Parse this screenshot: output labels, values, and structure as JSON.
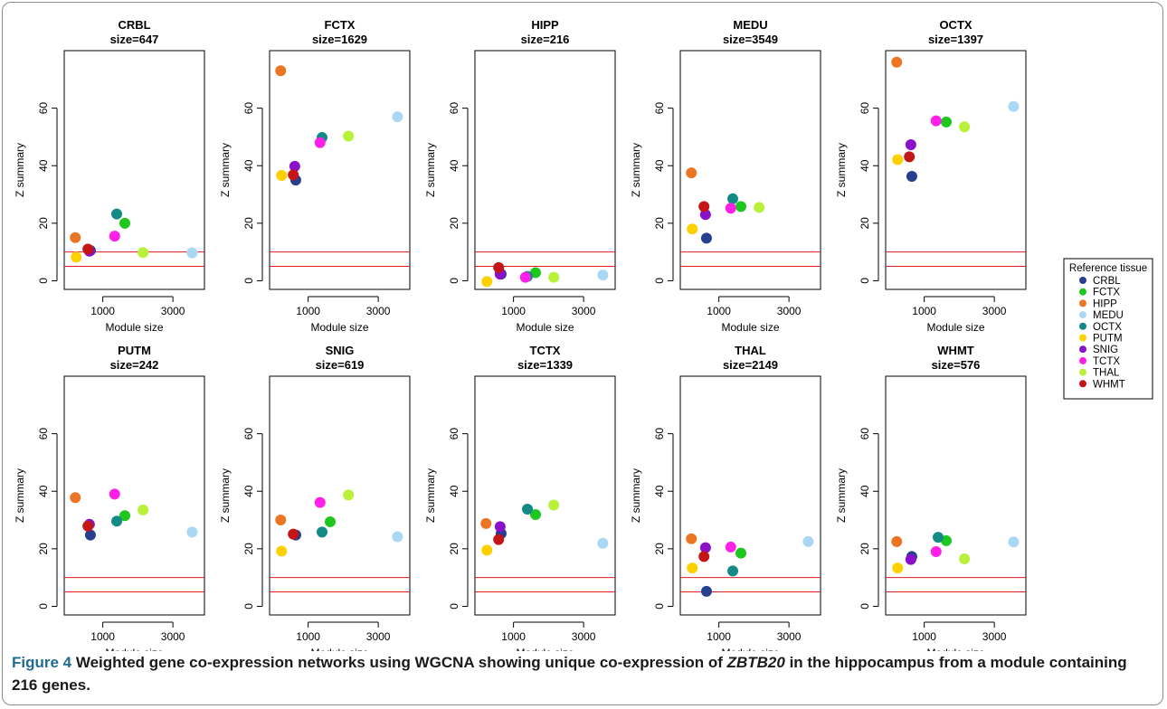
{
  "chart_data": {
    "type": "scatter",
    "layout": "2 rows x 5 columns of small multiples",
    "xlabel": "Module size",
    "ylabel": "Z summary",
    "xticks": [
      1000,
      3000
    ],
    "x_tick_labels": [
      "1000",
      "3000"
    ],
    "xlim": [
      -100,
      3900
    ],
    "yticks": [
      0,
      20,
      40,
      60
    ],
    "y_tick_labels": [
      "0",
      "20",
      "40",
      "60"
    ],
    "ylim": [
      -3,
      80
    ],
    "reference_lines": [
      {
        "y": 5,
        "color": "#e31a1c"
      },
      {
        "y": 10,
        "color": "#e31a1c"
      }
    ],
    "grid": false,
    "legend": {
      "title": "Reference tissue",
      "position": "right",
      "entries": [
        {
          "name": "CRBL",
          "color": "#26408f"
        },
        {
          "name": "FCTX",
          "color": "#1ec71e"
        },
        {
          "name": "HIPP",
          "color": "#ec7524"
        },
        {
          "name": "MEDU",
          "color": "#aad8f4"
        },
        {
          "name": "OCTX",
          "color": "#138a85"
        },
        {
          "name": "PUTM",
          "color": "#ffd000"
        },
        {
          "name": "SNIG",
          "color": "#8a10c9"
        },
        {
          "name": "TCTX",
          "color": "#ff20e8"
        },
        {
          "name": "THAL",
          "color": "#b8f03a"
        },
        {
          "name": "WHMT",
          "color": "#c41616"
        }
      ]
    },
    "panels": [
      {
        "title": "CRBL",
        "subtitle": "size=647",
        "points": [
          {
            "tissue": "CRBL",
            "x": 647,
            "y": 10.5
          },
          {
            "tissue": "FCTX",
            "x": 1629,
            "y": 20
          },
          {
            "tissue": "HIPP",
            "x": 216,
            "y": 15
          },
          {
            "tissue": "MEDU",
            "x": 3549,
            "y": 9.7
          },
          {
            "tissue": "OCTX",
            "x": 1397,
            "y": 23.2
          },
          {
            "tissue": "PUTM",
            "x": 242,
            "y": 8.2
          },
          {
            "tissue": "SNIG",
            "x": 619,
            "y": 10.3
          },
          {
            "tissue": "TCTX",
            "x": 1339,
            "y": 15.5
          },
          {
            "tissue": "THAL",
            "x": 2149,
            "y": 9.8
          },
          {
            "tissue": "WHMT",
            "x": 576,
            "y": 11
          }
        ]
      },
      {
        "title": "FCTX",
        "subtitle": "size=1629",
        "points": [
          {
            "tissue": "CRBL",
            "x": 647,
            "y": 35
          },
          {
            "tissue": "HIPP",
            "x": 216,
            "y": 73
          },
          {
            "tissue": "MEDU",
            "x": 3549,
            "y": 57
          },
          {
            "tissue": "OCTX",
            "x": 1397,
            "y": 49.8
          },
          {
            "tissue": "PUTM",
            "x": 242,
            "y": 36.6
          },
          {
            "tissue": "SNIG",
            "x": 619,
            "y": 39.8
          },
          {
            "tissue": "TCTX",
            "x": 1339,
            "y": 48
          },
          {
            "tissue": "THAL",
            "x": 2149,
            "y": 50.3
          },
          {
            "tissue": "WHMT",
            "x": 576,
            "y": 36.8
          }
        ]
      },
      {
        "title": "HIPP",
        "subtitle": "size=216",
        "points": [
          {
            "tissue": "CRBL",
            "x": 647,
            "y": 2.3
          },
          {
            "tissue": "FCTX",
            "x": 1629,
            "y": 2.8
          },
          {
            "tissue": "MEDU",
            "x": 3549,
            "y": 2
          },
          {
            "tissue": "OCTX",
            "x": 1397,
            "y": 1.5
          },
          {
            "tissue": "PUTM",
            "x": 242,
            "y": -0.3
          },
          {
            "tissue": "SNIG",
            "x": 619,
            "y": 2.3
          },
          {
            "tissue": "TCTX",
            "x": 1339,
            "y": 1.2
          },
          {
            "tissue": "THAL",
            "x": 2149,
            "y": 1.2
          },
          {
            "tissue": "WHMT",
            "x": 576,
            "y": 4.6
          }
        ]
      },
      {
        "title": "MEDU",
        "subtitle": "size=3549",
        "points": [
          {
            "tissue": "CRBL",
            "x": 647,
            "y": 14.8
          },
          {
            "tissue": "FCTX",
            "x": 1629,
            "y": 25.8
          },
          {
            "tissue": "HIPP",
            "x": 216,
            "y": 37.5
          },
          {
            "tissue": "OCTX",
            "x": 1397,
            "y": 28.5
          },
          {
            "tissue": "PUTM",
            "x": 242,
            "y": 18
          },
          {
            "tissue": "SNIG",
            "x": 619,
            "y": 23
          },
          {
            "tissue": "TCTX",
            "x": 1339,
            "y": 25.2
          },
          {
            "tissue": "THAL",
            "x": 2149,
            "y": 25.5
          },
          {
            "tissue": "WHMT",
            "x": 576,
            "y": 25.8
          }
        ]
      },
      {
        "title": "OCTX",
        "subtitle": "size=1397",
        "points": [
          {
            "tissue": "CRBL",
            "x": 647,
            "y": 36.3
          },
          {
            "tissue": "FCTX",
            "x": 1629,
            "y": 55.2
          },
          {
            "tissue": "HIPP",
            "x": 216,
            "y": 76
          },
          {
            "tissue": "MEDU",
            "x": 3549,
            "y": 60.6
          },
          {
            "tissue": "PUTM",
            "x": 242,
            "y": 42.1
          },
          {
            "tissue": "SNIG",
            "x": 619,
            "y": 47.3
          },
          {
            "tissue": "TCTX",
            "x": 1339,
            "y": 55.6
          },
          {
            "tissue": "THAL",
            "x": 2149,
            "y": 53.5
          },
          {
            "tissue": "WHMT",
            "x": 576,
            "y": 43.1
          }
        ]
      },
      {
        "title": "PUTM",
        "subtitle": "size=242",
        "points": [
          {
            "tissue": "CRBL",
            "x": 647,
            "y": 24.8
          },
          {
            "tissue": "FCTX",
            "x": 1629,
            "y": 31.5
          },
          {
            "tissue": "HIPP",
            "x": 216,
            "y": 37.8
          },
          {
            "tissue": "MEDU",
            "x": 3549,
            "y": 25.8
          },
          {
            "tissue": "OCTX",
            "x": 1397,
            "y": 29.6
          },
          {
            "tissue": "SNIG",
            "x": 619,
            "y": 28.5
          },
          {
            "tissue": "TCTX",
            "x": 1339,
            "y": 39
          },
          {
            "tissue": "THAL",
            "x": 2149,
            "y": 33.5
          },
          {
            "tissue": "WHMT",
            "x": 576,
            "y": 27.9
          }
        ]
      },
      {
        "title": "SNIG",
        "subtitle": "size=619",
        "points": [
          {
            "tissue": "CRBL",
            "x": 647,
            "y": 24.8
          },
          {
            "tissue": "FCTX",
            "x": 1629,
            "y": 29.4
          },
          {
            "tissue": "HIPP",
            "x": 216,
            "y": 30
          },
          {
            "tissue": "MEDU",
            "x": 3549,
            "y": 24.2
          },
          {
            "tissue": "OCTX",
            "x": 1397,
            "y": 25.8
          },
          {
            "tissue": "PUTM",
            "x": 242,
            "y": 19.2
          },
          {
            "tissue": "TCTX",
            "x": 1339,
            "y": 36.1
          },
          {
            "tissue": "THAL",
            "x": 2149,
            "y": 38.7
          },
          {
            "tissue": "WHMT",
            "x": 576,
            "y": 25.1
          }
        ]
      },
      {
        "title": "TCTX",
        "subtitle": "size=1339",
        "points": [
          {
            "tissue": "CRBL",
            "x": 647,
            "y": 25.3
          },
          {
            "tissue": "FCTX",
            "x": 1629,
            "y": 31.9
          },
          {
            "tissue": "HIPP",
            "x": 216,
            "y": 28.8
          },
          {
            "tissue": "MEDU",
            "x": 3549,
            "y": 21.9
          },
          {
            "tissue": "OCTX",
            "x": 1397,
            "y": 33.8
          },
          {
            "tissue": "PUTM",
            "x": 242,
            "y": 19.5
          },
          {
            "tissue": "SNIG",
            "x": 619,
            "y": 27.7
          },
          {
            "tissue": "THAL",
            "x": 2149,
            "y": 35.2
          },
          {
            "tissue": "WHMT",
            "x": 576,
            "y": 23.2
          }
        ]
      },
      {
        "title": "THAL",
        "subtitle": "size=2149",
        "points": [
          {
            "tissue": "CRBL",
            "x": 647,
            "y": 5.2
          },
          {
            "tissue": "FCTX",
            "x": 1629,
            "y": 18.5
          },
          {
            "tissue": "HIPP",
            "x": 216,
            "y": 23.5
          },
          {
            "tissue": "MEDU",
            "x": 3549,
            "y": 22.5
          },
          {
            "tissue": "OCTX",
            "x": 1397,
            "y": 12.3
          },
          {
            "tissue": "PUTM",
            "x": 242,
            "y": 13.3
          },
          {
            "tissue": "SNIG",
            "x": 619,
            "y": 20.4
          },
          {
            "tissue": "TCTX",
            "x": 1339,
            "y": 20.6
          },
          {
            "tissue": "WHMT",
            "x": 576,
            "y": 17.3
          }
        ]
      },
      {
        "title": "WHMT",
        "subtitle": "size=576",
        "points": [
          {
            "tissue": "CRBL",
            "x": 647,
            "y": 17.3
          },
          {
            "tissue": "FCTX",
            "x": 1629,
            "y": 22.8
          },
          {
            "tissue": "HIPP",
            "x": 216,
            "y": 22.5
          },
          {
            "tissue": "MEDU",
            "x": 3549,
            "y": 22.4
          },
          {
            "tissue": "OCTX",
            "x": 1397,
            "y": 24
          },
          {
            "tissue": "PUTM",
            "x": 242,
            "y": 13.3
          },
          {
            "tissue": "SNIG",
            "x": 619,
            "y": 16.3
          },
          {
            "tissue": "TCTX",
            "x": 1339,
            "y": 19
          },
          {
            "tissue": "THAL",
            "x": 2149,
            "y": 16.5
          }
        ]
      }
    ]
  },
  "caption": {
    "lead": "Figure 4",
    "text_before": " Weighted gene co-expression networks using WGCNA showing unique co-expression of ",
    "gene": "ZBTB20",
    "text_after": " in the hippocampus from a module containing 216 genes."
  }
}
